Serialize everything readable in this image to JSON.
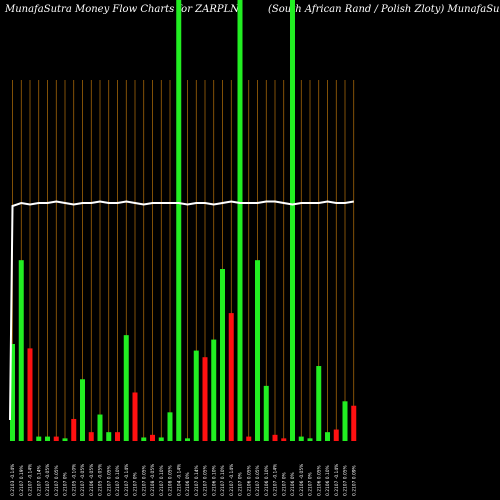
{
  "header": {
    "left_title": "MunafaSutra  Money Flow  Charts for ZARPLN",
    "right_title": "(South African  Rand / Polish Zloty) MunafaSutra.com"
  },
  "colors": {
    "background": "#000000",
    "grid": "#b8720b",
    "up": "#22ee22",
    "down": "#ff1111",
    "price_line": "#ffffff",
    "label": "#ffffff"
  },
  "chart_data": {
    "type": "bar",
    "title": "MunafaSutra  Money Flow  Charts for ZARPLN",
    "subtitle": "(South African  Rand / Polish Zloty) MunafaSutra.com",
    "xlabel": "",
    "ylabel": "",
    "grid": true,
    "legend": "none",
    "ylim": [
      0,
      100
    ],
    "categories": [
      "0.2103 -0.14%",
      "0.2107 0.19%",
      "0.2107 -0.14%",
      "0.2107 0.14%",
      "0.2107 -0.05%",
      "0.2107 0.05%",
      "0.2107 0%",
      "0.2105 -0.10%",
      "0.2107 -0.05%",
      "0.2106 -0.05%",
      "0.2105 -0.05%",
      "0.2107 0.05%",
      "0.2107 0.10%",
      "0.2107 -0.14%",
      "0.2107 0%",
      "0.2107 0.05%",
      "0.2108 -0.05%",
      "0.2107 0.10%",
      "0.2108 0.05%",
      "0.2104 -0.14%",
      "0.2106 0%",
      "0.2107 0.14%",
      "0.2107 0.05%",
      "0.2106 0.10%",
      "0.2107 0.10%",
      "0.2107 -0.14%",
      "0.2107 0%",
      "0.2106 0.05%",
      "0.2107 0.05%",
      "0.2106 0.10%",
      "0.2107 -0.14%",
      "0.2107 0%",
      "0.2106 0%",
      "0.2106 -0.05%",
      "0.2107 0%",
      "0.2106 0.05%",
      "0.2106 0.10%",
      "0.2107 -0.14%",
      "0.2107 0.05%",
      "0.2107 0.09%"
    ],
    "values": [
      22,
      41,
      21,
      1,
      1,
      1,
      0.6,
      5,
      14,
      2,
      6,
      2,
      2,
      24,
      11,
      0.8,
      1.4,
      0.8,
      6.5,
      100,
      0.6,
      20.5,
      19,
      23,
      39,
      29,
      100,
      1,
      41,
      12.5,
      1.4,
      0.6,
      100,
      1,
      0.6,
      17,
      2,
      2.6,
      9,
      8
    ],
    "flows": [
      "up",
      "up",
      "down",
      "up",
      "up",
      "down",
      "up",
      "down",
      "up",
      "down",
      "up",
      "up",
      "down",
      "up",
      "down",
      "up",
      "down",
      "up",
      "up",
      "up",
      "up",
      "up",
      "down",
      "up",
      "up",
      "down",
      "up",
      "down",
      "up",
      "up",
      "down",
      "down",
      "up",
      "up",
      "up",
      "up",
      "up",
      "down",
      "up",
      "down"
    ],
    "price_line": [
      88,
      89,
      88.5,
      89,
      89,
      89.5,
      89,
      88.5,
      89,
      89,
      89.5,
      89,
      89,
      89.5,
      89,
      88.5,
      89,
      89,
      89,
      89,
      88.5,
      89,
      89,
      88.5,
      89,
      89.5,
      89,
      89,
      89,
      89.5,
      89.5,
      89,
      88.5,
      89,
      89,
      89,
      89.5,
      89,
      89,
      89.5
    ]
  }
}
